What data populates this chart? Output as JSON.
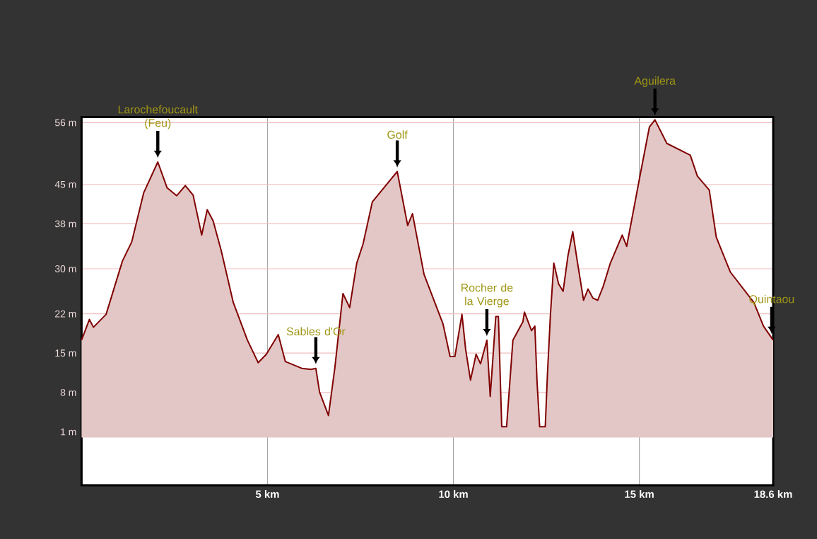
{
  "chart_data": {
    "type": "area",
    "x": [
      0,
      0.21,
      0.32,
      0.66,
      1.1,
      1.35,
      1.67,
      2.05,
      2.3,
      2.56,
      2.79,
      3.0,
      3.23,
      3.38,
      3.54,
      3.76,
      4.08,
      4.46,
      4.75,
      4.97,
      5.29,
      5.48,
      5.92,
      6.17,
      6.3,
      6.4,
      6.64,
      6.81,
      7.03,
      7.21,
      7.4,
      7.57,
      7.82,
      8.49,
      8.77,
      8.9,
      9.21,
      9.72,
      9.91,
      10.04,
      10.23,
      10.33,
      10.46,
      10.61,
      10.73,
      10.9,
      10.99,
      11.14,
      11.21,
      11.3,
      11.43,
      11.6,
      11.87,
      11.91,
      12.1,
      12.19,
      12.25,
      12.32,
      12.47,
      12.53,
      12.61,
      12.7,
      12.83,
      12.95,
      13.08,
      13.21,
      13.33,
      13.5,
      13.62,
      13.75,
      13.88,
      14.03,
      14.22,
      14.54,
      14.66,
      15.04,
      15.27,
      15.42,
      15.74,
      16.37,
      16.56,
      16.88,
      17.07,
      17.45,
      18.08,
      18.34,
      18.6
    ],
    "series": [
      {
        "color": "#800000",
        "values": [
          17.3,
          21.0,
          19.6,
          21.9,
          31.4,
          34.8,
          43.5,
          49.0,
          44.4,
          43.0,
          44.8,
          43.1,
          36.0,
          40.5,
          38.5,
          33.1,
          24.0,
          17.3,
          13.3,
          14.8,
          18.3,
          13.5,
          12.3,
          12.1,
          12.3,
          8.1,
          3.9,
          12.3,
          25.6,
          23.1,
          31.0,
          34.4,
          41.9,
          47.3,
          37.7,
          39.8,
          29.0,
          20.2,
          14.4,
          14.4,
          21.9,
          15.6,
          10.2,
          14.8,
          13.1,
          17.3,
          7.3,
          21.5,
          21.5,
          1.9,
          1.9,
          17.3,
          20.6,
          22.3,
          19.0,
          19.8,
          9.8,
          1.9,
          1.9,
          11.4,
          21.9,
          31.0,
          27.3,
          26.0,
          32.3,
          36.6,
          31.4,
          24.4,
          26.4,
          24.8,
          24.4,
          26.9,
          31.0,
          36.0,
          34.0,
          47.3,
          55.2,
          56.5,
          52.3,
          50.2,
          46.5,
          44.0,
          35.6,
          29.4,
          24.0,
          19.8,
          17.3
        ]
      }
    ],
    "xlim": [
      0,
      18.6
    ],
    "ylim": [
      -8.5,
      57
    ],
    "xticks": [
      {
        "value": 5,
        "label": "5 km"
      },
      {
        "value": 10,
        "label": "10 km"
      },
      {
        "value": 15,
        "label": "15 km"
      },
      {
        "value": 18.6,
        "label": "18.6 km"
      }
    ],
    "yticks": [
      {
        "value": 1,
        "label": "1 m"
      },
      {
        "value": 8,
        "label": "8 m"
      },
      {
        "value": 15,
        "label": "15 m"
      },
      {
        "value": 22,
        "label": "22 m"
      },
      {
        "value": 30,
        "label": "30 m"
      },
      {
        "value": 38,
        "label": "38 m"
      },
      {
        "value": 45,
        "label": "45 m"
      },
      {
        "value": 56,
        "label": "56 m"
      }
    ],
    "grid": true,
    "annotations": [
      {
        "text": "Larochefoucault (Feu)",
        "x": 2.05,
        "y": 49.0
      },
      {
        "text": "Sables d'Or",
        "x": 6.3,
        "y": 12.3
      },
      {
        "text": "Golf",
        "x": 8.49,
        "y": 47.3
      },
      {
        "text": "Rocher de la Vierge",
        "x": 10.9,
        "y": 17.3
      },
      {
        "text": "Aguilera",
        "x": 15.42,
        "y": 56.5
      },
      {
        "text": "Quintaou",
        "x": 18.56,
        "y": 17.7
      }
    ]
  }
}
